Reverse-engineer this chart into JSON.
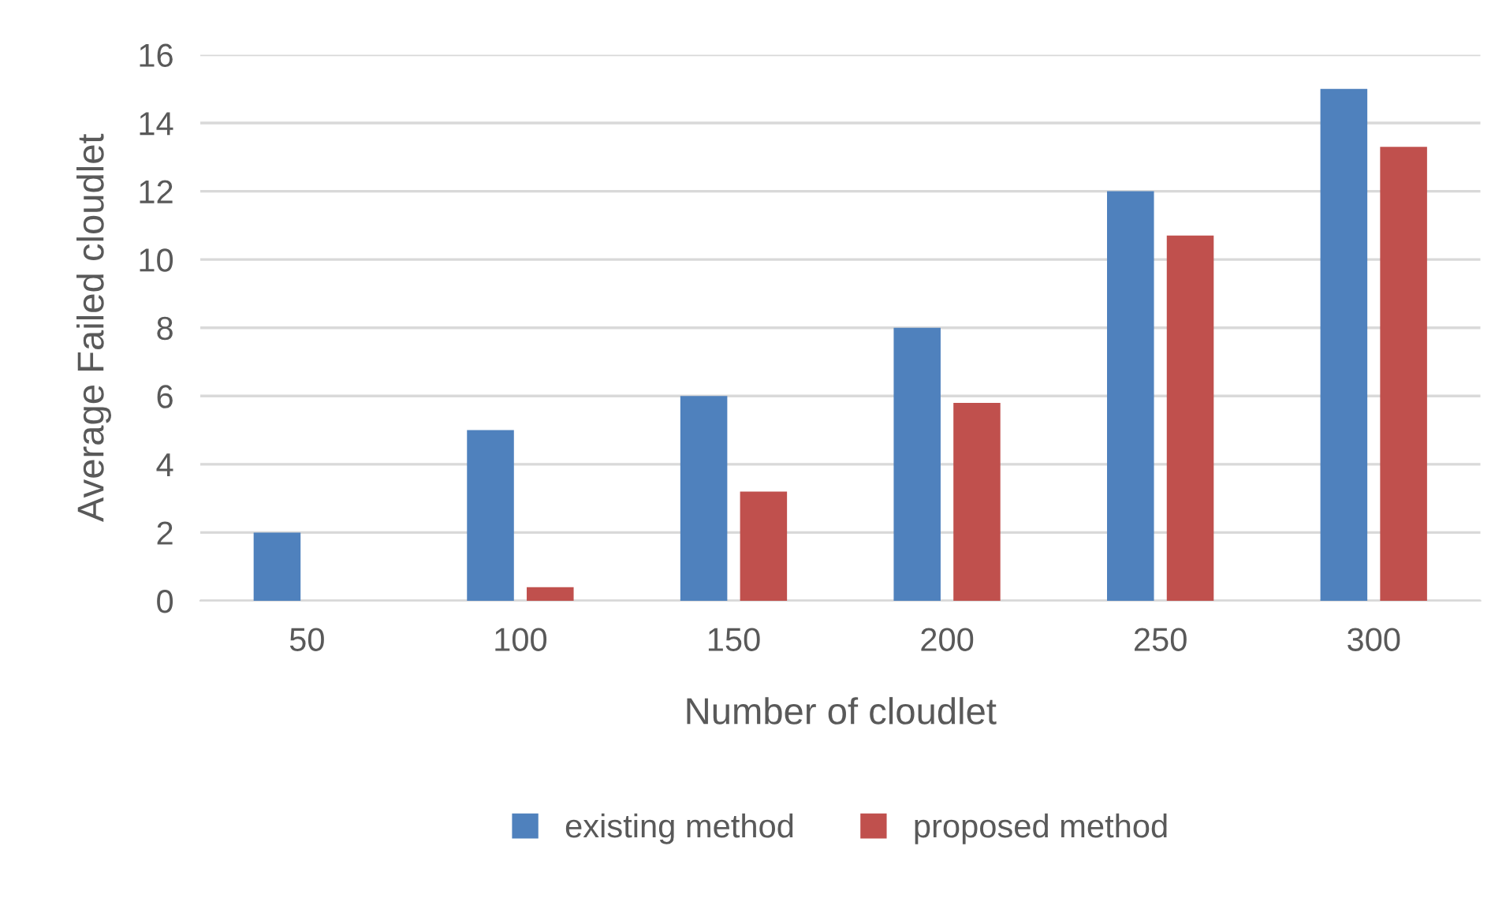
{
  "chart_data": {
    "type": "bar",
    "xlabel": "Number of cloudlet",
    "ylabel": "Average Failed cloudlet",
    "categories": [
      "50",
      "100",
      "150",
      "200",
      "250",
      "300"
    ],
    "series": [
      {
        "name": "existing method",
        "color": "#4f81bd",
        "values": [
          2,
          5,
          6,
          8,
          12,
          15
        ]
      },
      {
        "name": "proposed method",
        "color": "#c0504d",
        "values": [
          0,
          0.4,
          3.2,
          5.8,
          10.7,
          13.3
        ]
      }
    ],
    "ylim": [
      0,
      16
    ],
    "yticks": [
      0,
      2,
      4,
      6,
      8,
      10,
      12,
      14,
      16
    ],
    "grid": "y",
    "legend": "bottom"
  }
}
